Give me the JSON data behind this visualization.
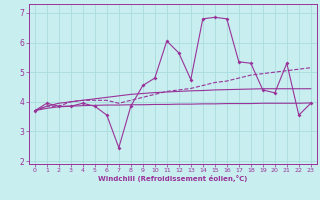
{
  "xlabel": "Windchill (Refroidissement éolien,°C)",
  "background_color": "#c8eef0",
  "grid_color": "#aadddd",
  "line_color": "#993399",
  "x_values": [
    0,
    1,
    2,
    3,
    4,
    5,
    6,
    7,
    8,
    9,
    10,
    11,
    12,
    13,
    14,
    15,
    16,
    17,
    18,
    19,
    20,
    21,
    22,
    23
  ],
  "line1": [
    3.7,
    3.95,
    3.85,
    3.85,
    3.95,
    3.85,
    3.55,
    2.45,
    3.85,
    4.55,
    4.8,
    6.05,
    5.65,
    4.75,
    6.8,
    6.85,
    6.8,
    5.35,
    5.3,
    4.4,
    4.3,
    5.3,
    3.55,
    3.95
  ],
  "line2": [
    3.7,
    3.85,
    3.85,
    4.0,
    4.05,
    4.05,
    4.05,
    3.95,
    4.05,
    4.15,
    4.25,
    4.35,
    4.4,
    4.45,
    4.55,
    4.65,
    4.7,
    4.8,
    4.9,
    4.95,
    5.0,
    5.05,
    5.1,
    5.15
  ],
  "line3": [
    3.7,
    3.78,
    3.83,
    3.85,
    3.87,
    3.88,
    3.89,
    3.89,
    3.9,
    3.9,
    3.91,
    3.91,
    3.92,
    3.92,
    3.93,
    3.93,
    3.94,
    3.94,
    3.94,
    3.95,
    3.95,
    3.95,
    3.95,
    3.96
  ],
  "line4": [
    3.7,
    3.85,
    3.95,
    4.0,
    4.05,
    4.1,
    4.15,
    4.2,
    4.25,
    4.28,
    4.31,
    4.33,
    4.35,
    4.37,
    4.38,
    4.4,
    4.41,
    4.42,
    4.43,
    4.44,
    4.44,
    4.44,
    4.44,
    4.44
  ],
  "ylim": [
    1.9,
    7.3
  ],
  "xlim": [
    -0.5,
    23.5
  ],
  "yticks": [
    2,
    3,
    4,
    5,
    6,
    7
  ],
  "xticks": [
    0,
    1,
    2,
    3,
    4,
    5,
    6,
    7,
    8,
    9,
    10,
    11,
    12,
    13,
    14,
    15,
    16,
    17,
    18,
    19,
    20,
    21,
    22,
    23
  ]
}
